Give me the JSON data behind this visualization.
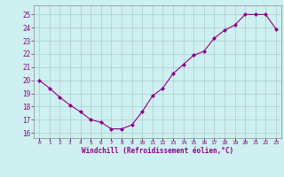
{
  "x": [
    0,
    1,
    2,
    3,
    4,
    5,
    6,
    7,
    8,
    9,
    10,
    11,
    12,
    13,
    14,
    15,
    16,
    17,
    18,
    19,
    20,
    21,
    22,
    23
  ],
  "y": [
    20.0,
    19.4,
    18.7,
    18.1,
    17.6,
    17.0,
    16.8,
    16.3,
    16.3,
    16.6,
    17.6,
    18.8,
    19.4,
    20.5,
    21.2,
    21.9,
    22.2,
    23.2,
    23.8,
    24.2,
    25.0,
    25.0,
    25.0,
    23.9
  ],
  "line_color": "#8B008B",
  "marker": "D",
  "marker_size": 2,
  "bg_color": "#cff0f0",
  "grid_color": "#aacccc",
  "xlabel": "Windchill (Refroidissement éolien,°C)",
  "xlabel_color": "#8B008B",
  "ylabel_ticks": [
    16,
    17,
    18,
    19,
    20,
    21,
    22,
    23,
    24,
    25
  ],
  "xtick_labels": [
    "0",
    "1",
    "2",
    "3",
    "4",
    "5",
    "6",
    "7",
    "8",
    "9",
    "10",
    "11",
    "12",
    "13",
    "14",
    "15",
    "16",
    "17",
    "18",
    "19",
    "20",
    "21",
    "22",
    "23"
  ],
  "ylim": [
    15.6,
    25.7
  ],
  "xlim": [
    -0.5,
    23.5
  ]
}
